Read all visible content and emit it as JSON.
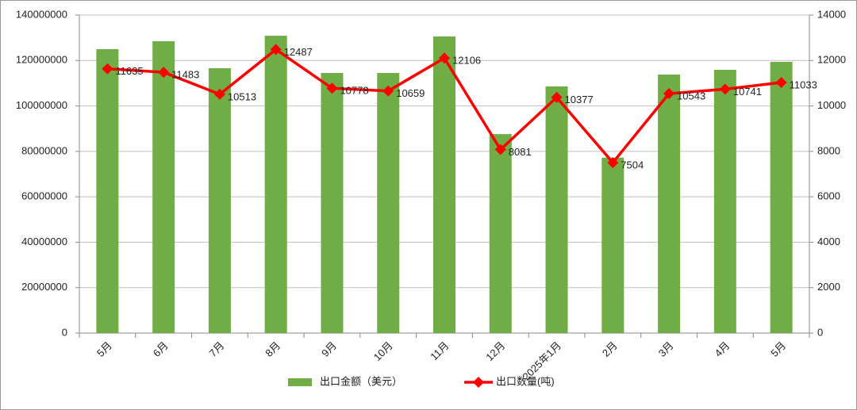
{
  "chart_data": {
    "type": "bar",
    "categories": [
      "5月",
      "6月",
      "7月",
      "8月",
      "9月",
      "10月",
      "11月",
      "12月",
      "2025年1月",
      "2月",
      "3月",
      "4月",
      "5月"
    ],
    "series": [
      {
        "name": "出口金额（美元）",
        "color": "#70ad47",
        "values": [
          125000000,
          128500000,
          116600000,
          130900000,
          114500000,
          114500000,
          130600000,
          87600000,
          108600000,
          77200000,
          113800000,
          115900000,
          119400000
        ]
      },
      {
        "name": "出口数量(吨)",
        "color": "#ff0000",
        "type": "line",
        "axis": "y2",
        "values": [
          11635,
          11483,
          10513,
          12487,
          10778,
          10659,
          12106,
          8081,
          10377,
          7504,
          10543,
          10741,
          11033
        ]
      }
    ],
    "ylim": [
      0,
      140000000
    ],
    "yticks": [
      0,
      20000000,
      40000000,
      60000000,
      80000000,
      100000000,
      120000000,
      140000000
    ],
    "y2lim": [
      0,
      14000
    ],
    "y2ticks": [
      0,
      2000,
      4000,
      6000,
      8000,
      10000,
      12000,
      14000
    ],
    "grid": true,
    "legend": "bottom"
  }
}
